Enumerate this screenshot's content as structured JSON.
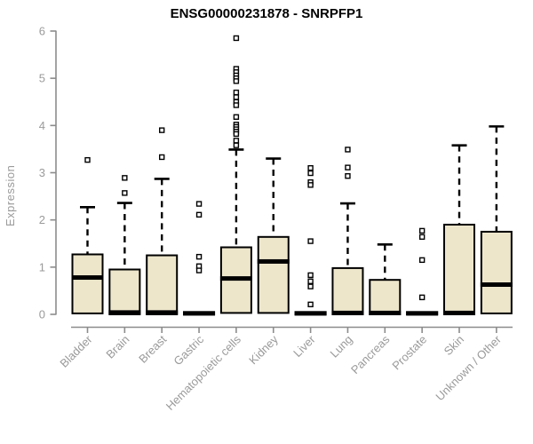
{
  "chart_data": {
    "type": "box",
    "title": "ENSG00000231878 - SNRPFP1",
    "ylabel": "Expression",
    "xlabel": "",
    "ylim": [
      0,
      6
    ],
    "yticks": [
      0,
      1,
      2,
      3,
      4,
      5,
      6
    ],
    "grid": false,
    "legend": "none",
    "colors": {
      "box_fill": "#EDE6CB",
      "box_stroke": "#000000",
      "median": "#000000",
      "whisker": "#000000",
      "outlier_stroke": "#000000",
      "outlier_fill": "#ffffff",
      "axis": "#8c8c8c",
      "tick_label": "#9a9a9a",
      "background": "#ffffff"
    },
    "categories": [
      "Bladder",
      "Brain",
      "Breast",
      "Gastric",
      "Hematopoietic cells",
      "Kidney",
      "Liver",
      "Lung",
      "Pancreas",
      "Prostate",
      "Skin",
      "Unknown / Other"
    ],
    "boxes": [
      {
        "name": "Bladder",
        "q1": 0.02,
        "median": 0.78,
        "q3": 1.27,
        "whisker_low": 0.02,
        "whisker_high": 2.27,
        "outliers": [
          3.27
        ]
      },
      {
        "name": "Brain",
        "q1": 0.0,
        "median": 0.04,
        "q3": 0.95,
        "whisker_low": 0.0,
        "whisker_high": 2.36,
        "outliers": [
          2.89,
          2.57
        ]
      },
      {
        "name": "Breast",
        "q1": 0.0,
        "median": 0.04,
        "q3": 1.25,
        "whisker_low": 0.0,
        "whisker_high": 2.87,
        "outliers": [
          3.9,
          3.33
        ]
      },
      {
        "name": "Gastric",
        "q1": 0.0,
        "median": 0.02,
        "q3": 0.05,
        "whisker_low": 0.0,
        "whisker_high": 0.05,
        "outliers": [
          2.34,
          2.11,
          1.22,
          1.02,
          0.93
        ]
      },
      {
        "name": "Hematopoietic cells",
        "q1": 0.03,
        "median": 0.76,
        "q3": 1.42,
        "whisker_low": 0.03,
        "whisker_high": 3.49,
        "outliers": [
          5.85,
          5.2,
          5.13,
          5.06,
          5.0,
          4.94,
          4.7,
          4.6,
          4.5,
          4.43,
          4.18,
          4.02,
          3.97,
          3.92,
          3.87,
          3.82,
          3.68,
          3.58
        ]
      },
      {
        "name": "Kidney",
        "q1": 0.03,
        "median": 1.12,
        "q3": 1.64,
        "whisker_low": 0.03,
        "whisker_high": 3.3,
        "outliers": []
      },
      {
        "name": "Liver",
        "q1": 0.0,
        "median": 0.02,
        "q3": 0.05,
        "whisker_low": 0.0,
        "whisker_high": 0.05,
        "outliers": [
          3.1,
          2.99,
          2.8,
          2.74,
          1.55,
          0.83,
          0.7,
          0.59,
          0.21
        ]
      },
      {
        "name": "Lung",
        "q1": 0.0,
        "median": 0.03,
        "q3": 0.98,
        "whisker_low": 0.0,
        "whisker_high": 2.35,
        "outliers": [
          3.49,
          3.11,
          2.93
        ]
      },
      {
        "name": "Pancreas",
        "q1": 0.0,
        "median": 0.03,
        "q3": 0.73,
        "whisker_low": 0.0,
        "whisker_high": 1.48,
        "outliers": []
      },
      {
        "name": "Prostate",
        "q1": 0.0,
        "median": 0.02,
        "q3": 0.05,
        "whisker_low": 0.0,
        "whisker_high": 0.05,
        "outliers": [
          1.77,
          1.64,
          1.15,
          0.36
        ]
      },
      {
        "name": "Skin",
        "q1": 0.0,
        "median": 0.03,
        "q3": 1.9,
        "whisker_low": 0.0,
        "whisker_high": 3.58,
        "outliers": []
      },
      {
        "name": "Unknown / Other",
        "q1": 0.02,
        "median": 0.63,
        "q3": 1.75,
        "whisker_low": 0.02,
        "whisker_high": 3.98,
        "outliers": []
      }
    ]
  }
}
